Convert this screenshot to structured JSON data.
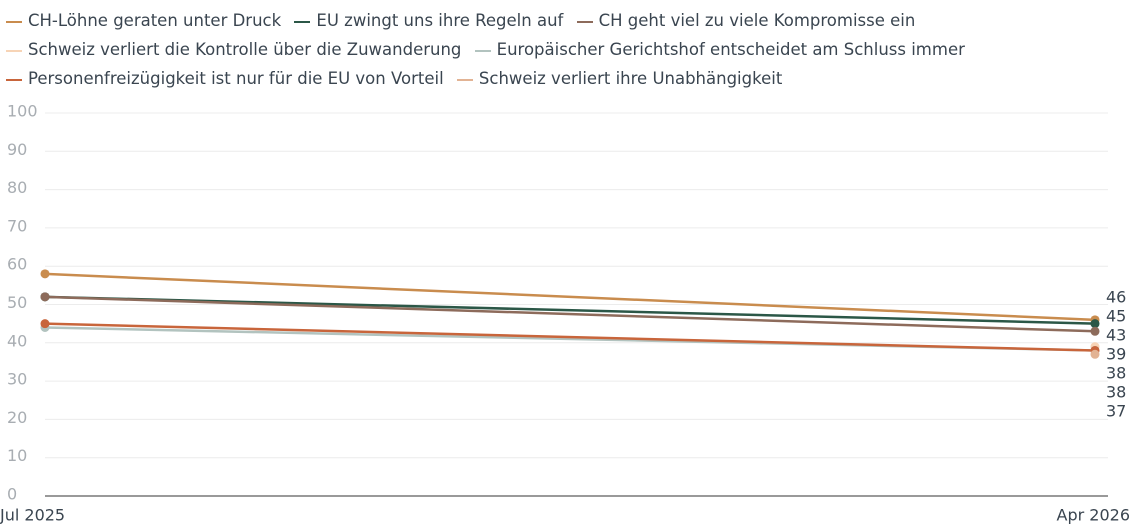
{
  "chart_data": {
    "type": "line",
    "categories": [
      "Jul 2025",
      "Apr 2026"
    ],
    "series": [
      {
        "name": "CH-Löhne geraten unter Druck",
        "color": "#c98c4e",
        "values": [
          58,
          46
        ]
      },
      {
        "name": "EU zwingt uns ihre Regeln auf",
        "color": "#2b5747",
        "values": [
          52,
          45
        ]
      },
      {
        "name": "CH geht viel zu viele Kompromisse ein",
        "color": "#8d6b5b",
        "values": [
          52,
          43
        ]
      },
      {
        "name": "Schweiz verliert die Kontrolle über die Zuwanderung",
        "color": "#f7d4b6",
        "values": [
          null,
          39
        ]
      },
      {
        "name": "Europäischer Gerichtshof entscheidet am Schluss immer",
        "color": "#b2c3bf",
        "values": [
          44,
          38
        ]
      },
      {
        "name": "Personenfreizügigkeit ist nur für die EU von Vorteil",
        "color": "#c8653b",
        "values": [
          45,
          38
        ]
      },
      {
        "name": "Schweiz verliert ihre Unabhängigkeit",
        "color": "#e2b394",
        "values": [
          null,
          37
        ]
      }
    ],
    "ylim": [
      0,
      100
    ],
    "yticks": [
      0,
      10,
      20,
      30,
      40,
      50,
      60,
      70,
      80,
      90,
      100
    ],
    "grid": true
  }
}
